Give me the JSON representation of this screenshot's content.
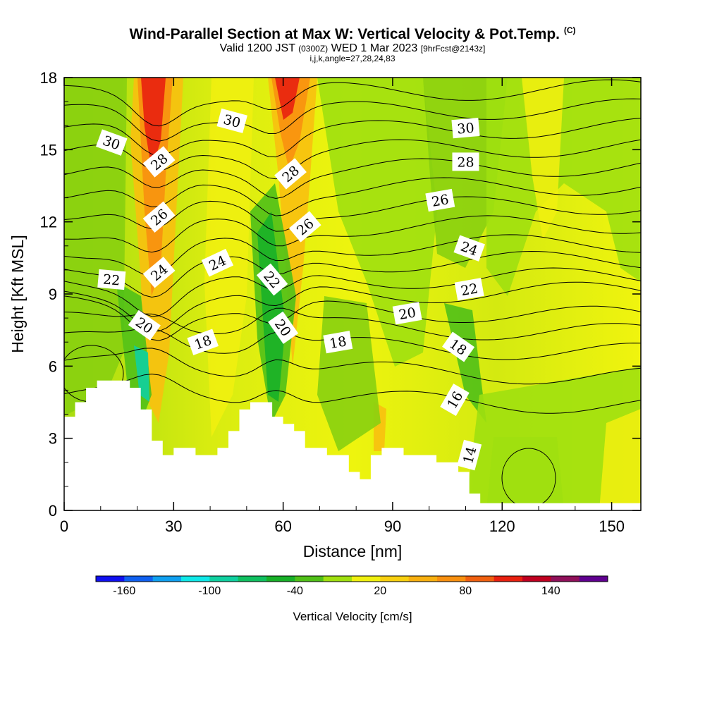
{
  "header": {
    "title": "Wind-Parallel Section at Max W: Vertical Velocity & Pot.Temp.",
    "copyright": "(C)",
    "valid_prefix": "Valid 1200 JST",
    "valid_utc": "(0300Z)",
    "valid_date": "WED 1 Mar 2023",
    "forecast_info": "[9hrFcst@2143z]",
    "grid_info": "i,j,k,angle=27,28,24,83"
  },
  "chart_data": {
    "type": "contour",
    "xlabel": "Distance [nm]",
    "ylabel": "Height [Kft MSL]",
    "xlim": [
      0,
      158
    ],
    "ylim": [
      0,
      18
    ],
    "x_ticks": [
      "0",
      "30",
      "60",
      "90",
      "120",
      "150"
    ],
    "y_ticks": [
      "0",
      "3",
      "6",
      "9",
      "12",
      "15",
      "18"
    ],
    "colorbar": {
      "label": "Vertical Velocity [cm/s]",
      "tick_labels": [
        "-160",
        "-100",
        "-40",
        "20",
        "80",
        "140"
      ],
      "colors": [
        "#1010f0",
        "#1060f0",
        "#10a0f0",
        "#10e8e8",
        "#10d0a0",
        "#10c060",
        "#18b028",
        "#50c018",
        "#a0e010",
        "#f0f010",
        "#f8d010",
        "#f8b010",
        "#f89010",
        "#f06010",
        "#e82010",
        "#c00020",
        "#90105a",
        "#600090"
      ]
    },
    "theta_contour_labels": [
      {
        "text": "30",
        "x": 13,
        "y": 15.3,
        "angle": 20
      },
      {
        "text": "30",
        "x": 46,
        "y": 16.2,
        "angle": 15
      },
      {
        "text": "30",
        "x": 110,
        "y": 15.9,
        "angle": -5
      },
      {
        "text": "28",
        "x": 26,
        "y": 14.5,
        "angle": -40
      },
      {
        "text": "28",
        "x": 62,
        "y": 14.0,
        "angle": -40
      },
      {
        "text": "28",
        "x": 110,
        "y": 14.5,
        "angle": 0
      },
      {
        "text": "26",
        "x": 26,
        "y": 12.2,
        "angle": -40
      },
      {
        "text": "26",
        "x": 66,
        "y": 11.8,
        "angle": -40
      },
      {
        "text": "26",
        "x": 103,
        "y": 12.9,
        "angle": -10
      },
      {
        "text": "24",
        "x": 26,
        "y": 9.9,
        "angle": -40
      },
      {
        "text": "24",
        "x": 42,
        "y": 10.3,
        "angle": -25
      },
      {
        "text": "24",
        "x": 111,
        "y": 10.9,
        "angle": 20
      },
      {
        "text": "22",
        "x": 13,
        "y": 9.6,
        "angle": 5
      },
      {
        "text": "22",
        "x": 57,
        "y": 9.6,
        "angle": 50
      },
      {
        "text": "22",
        "x": 111,
        "y": 9.2,
        "angle": -10
      },
      {
        "text": "20",
        "x": 22,
        "y": 7.7,
        "angle": 35
      },
      {
        "text": "20",
        "x": 60,
        "y": 7.6,
        "angle": 55
      },
      {
        "text": "20",
        "x": 94,
        "y": 8.2,
        "angle": -10
      },
      {
        "text": "18",
        "x": 38,
        "y": 7.0,
        "angle": -20
      },
      {
        "text": "18",
        "x": 75,
        "y": 7.0,
        "angle": -10
      },
      {
        "text": "18",
        "x": 108,
        "y": 6.8,
        "angle": 35
      },
      {
        "text": "16",
        "x": 107,
        "y": 4.6,
        "angle": -60
      },
      {
        "text": "14",
        "x": 111,
        "y": 2.3,
        "angle": -75
      }
    ]
  }
}
